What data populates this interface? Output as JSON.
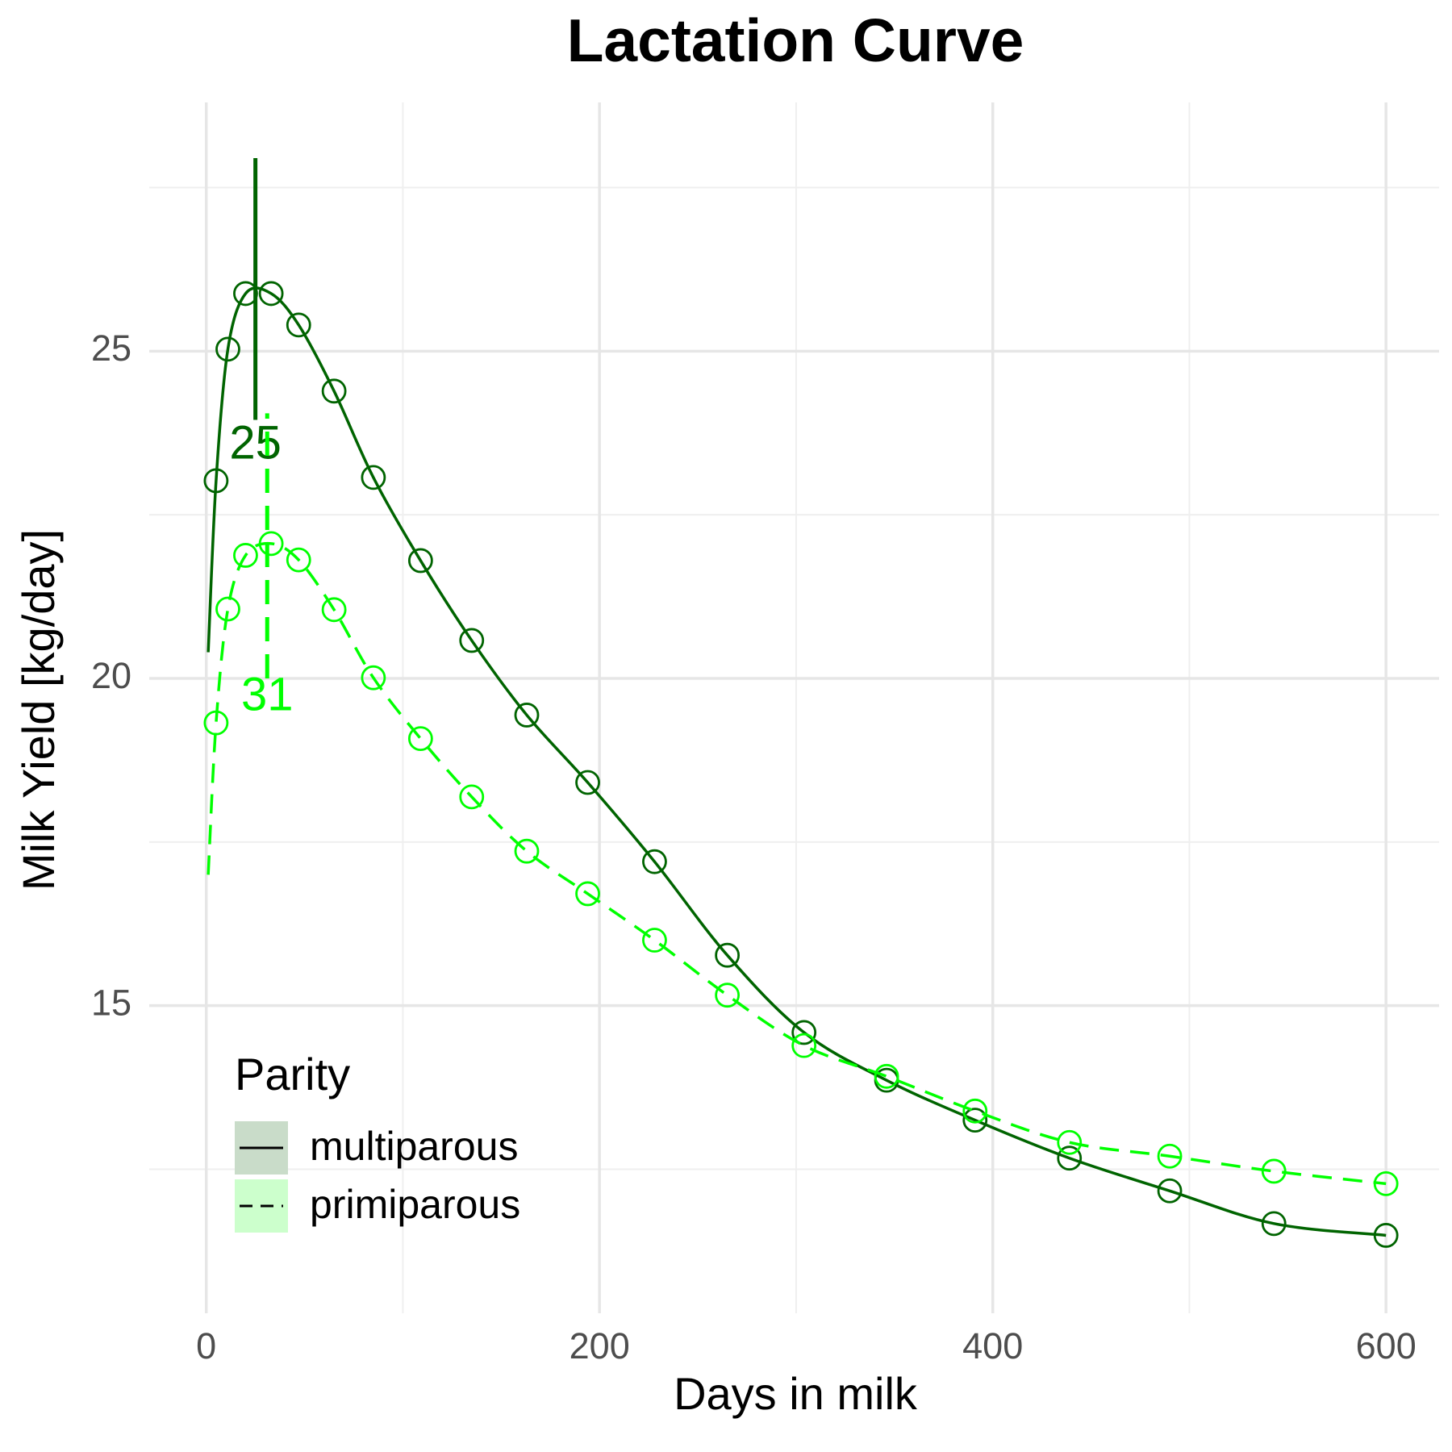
{
  "chart_data": {
    "type": "line",
    "title": "Lactation Curve",
    "x_label": "Days in milk",
    "y_label": "Milk Yield [kg/day]",
    "xlim": [
      -29,
      627
    ],
    "ylim": [
      10.3,
      28.8
    ],
    "xticks": [
      0,
      200,
      400,
      600
    ],
    "yticks": [
      15,
      20,
      25
    ],
    "minor_xticks": [
      100,
      300,
      500
    ],
    "minor_yticks": [
      12.5,
      17.5,
      22.5,
      27.5
    ],
    "grid": true,
    "legend": {
      "title": "Parity",
      "position": "bottom-left"
    },
    "series": [
      {
        "name": "multiparous",
        "color": "#006400",
        "fill": "#c9dcc9",
        "dash": "solid",
        "start": {
          "x": 1,
          "y": 20.4
        },
        "x": [
          5,
          11,
          20,
          33,
          47,
          65,
          85,
          109,
          135,
          163,
          194,
          228,
          265,
          304,
          346,
          391,
          439,
          490,
          543,
          600
        ],
        "values": [
          23.02,
          25.03,
          25.88,
          25.88,
          25.4,
          24.39,
          23.07,
          21.8,
          20.58,
          19.44,
          18.41,
          17.2,
          15.77,
          14.59,
          13.86,
          13.25,
          12.67,
          12.17,
          11.67,
          11.49
        ]
      },
      {
        "name": "primiparous",
        "color": "#00ff00",
        "fill": "#ccffcc",
        "dash": "dashed",
        "start": {
          "x": 1,
          "y": 17.0
        },
        "x": [
          5,
          11,
          20,
          33,
          47,
          65,
          85,
          109,
          135,
          163,
          194,
          228,
          265,
          304,
          346,
          391,
          439,
          490,
          543,
          600
        ],
        "values": [
          19.32,
          21.06,
          21.88,
          22.06,
          21.81,
          21.05,
          20.01,
          19.08,
          18.19,
          17.36,
          16.71,
          16.0,
          15.16,
          14.39,
          13.92,
          13.39,
          12.91,
          12.7,
          12.47,
          12.28
        ]
      }
    ],
    "annotations": [
      {
        "text": "25",
        "x": 25,
        "y_bottom": 23.95,
        "y_top": 27.95,
        "label_y": 23.55,
        "color": "#006400",
        "dash": "solid"
      },
      {
        "text": "31",
        "x": 31,
        "y_bottom": 20.0,
        "y_top": 24.05,
        "label_y": 19.7,
        "color": "#00ff00",
        "dash": "dashed"
      }
    ]
  }
}
